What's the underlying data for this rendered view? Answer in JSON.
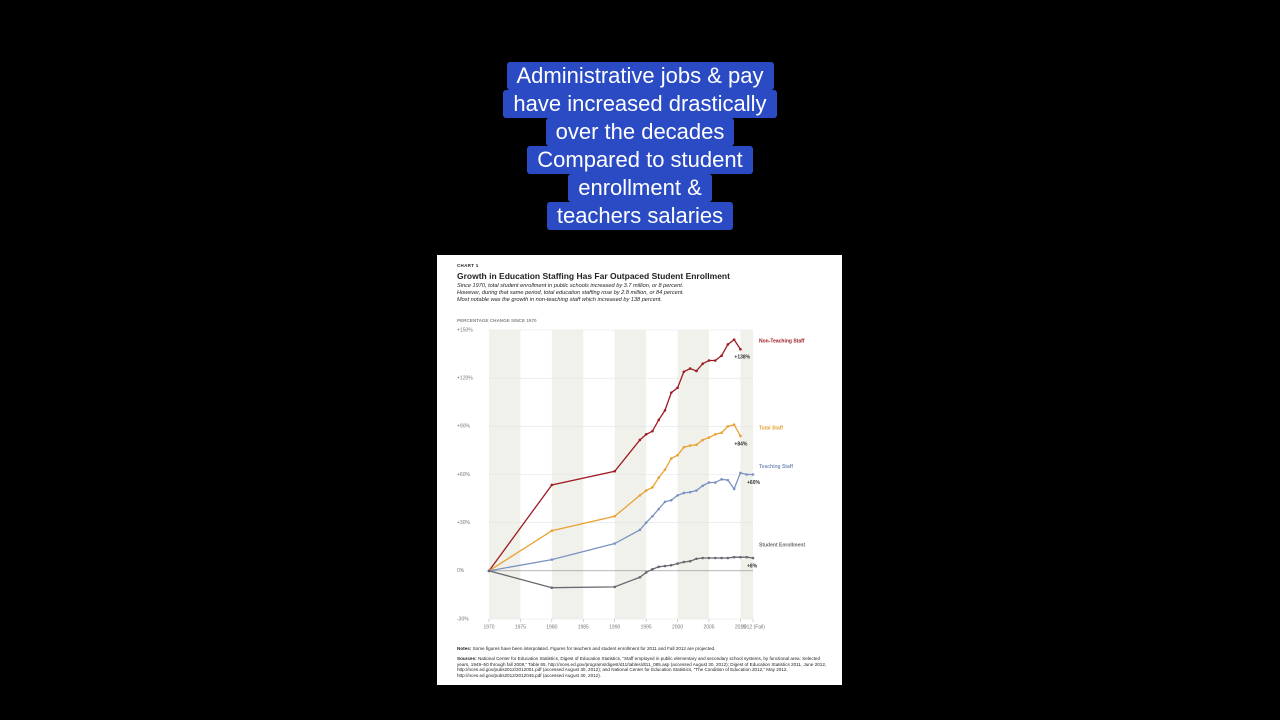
{
  "caption": {
    "lines": [
      "Administrative jobs & pay",
      "have increased drastically",
      "over the decades",
      "Compared to student",
      "enrollment &",
      "teachers salaries"
    ]
  },
  "chart_data": {
    "type": "line",
    "label": "CHART 1",
    "title": "Growth in Education Staffing Has Far Outpaced Student Enrollment",
    "subtitle": [
      "Since 1970, total student enrollment in public schools increased by 3.7 million, or 8 percent.",
      "However, during that same period, total education staffing rose by 2.8 million, or 84 percent.",
      "Most notable was the growth in non-teaching staff which increased by 138 percent."
    ],
    "ylabel": "PERCENTAGE CHANGE SINCE 1970",
    "x": [
      1970,
      1980,
      1990,
      1994,
      1995,
      1996,
      1997,
      1998,
      1999,
      2000,
      2001,
      2002,
      2003,
      2004,
      2005,
      2006,
      2007,
      2008,
      2009,
      2010,
      2011,
      2012
    ],
    "series": [
      {
        "name": "Non-Teaching Staff",
        "color": "#9e1b23",
        "values": [
          0,
          53.5,
          62,
          81.5,
          85,
          87,
          94,
          100,
          111,
          114,
          124,
          126,
          124.5,
          129,
          131,
          131,
          134,
          141,
          144,
          138,
          null,
          null
        ],
        "value_labels": [
          null,
          null,
          null,
          null,
          null,
          null,
          null,
          null,
          null,
          null,
          null,
          null,
          null,
          null,
          null,
          null,
          null,
          null,
          null,
          "+138%",
          null,
          null
        ]
      },
      {
        "name": "Total Staff",
        "color": "#e8a232",
        "values": [
          0,
          25,
          34,
          47,
          50,
          52,
          58,
          63,
          70,
          72,
          77,
          78,
          78.5,
          81.5,
          83,
          85,
          86,
          90,
          91,
          84,
          null,
          null
        ],
        "value_labels": [
          null,
          null,
          null,
          null,
          null,
          null,
          null,
          null,
          null,
          null,
          null,
          null,
          null,
          null,
          null,
          null,
          null,
          null,
          null,
          "+84%",
          null,
          null
        ]
      },
      {
        "name": "Teaching Staff",
        "color": "#7b92c0",
        "values": [
          0,
          7,
          17,
          25.5,
          30,
          34,
          38.5,
          43,
          44,
          47,
          48.5,
          49,
          50,
          53,
          55,
          55,
          57,
          56.5,
          51,
          61,
          60,
          60
        ],
        "value_labels": [
          null,
          null,
          null,
          null,
          null,
          null,
          null,
          null,
          null,
          null,
          null,
          null,
          null,
          null,
          null,
          null,
          null,
          null,
          null,
          null,
          null,
          "+60%"
        ]
      },
      {
        "name": "Student Enrollment",
        "color": "#666a70",
        "values": [
          0,
          -10.5,
          -10,
          -4,
          -1,
          1,
          2.5,
          3,
          3.5,
          4.5,
          5.5,
          6,
          7.5,
          8,
          8,
          8,
          8,
          8,
          8.5,
          8.5,
          8.5,
          8
        ],
        "value_labels": [
          null,
          null,
          null,
          null,
          null,
          null,
          null,
          null,
          null,
          null,
          null,
          null,
          null,
          null,
          null,
          null,
          null,
          null,
          null,
          null,
          null,
          "+8%"
        ]
      }
    ],
    "xlim": [
      1970,
      2012
    ],
    "ylim": [
      -30,
      150
    ],
    "xticks": [
      1970,
      1975,
      1980,
      1985,
      1990,
      1995,
      2000,
      2005,
      2010,
      {
        "value": 2012,
        "label": "2012 (Fall)"
      }
    ],
    "yticks": [
      {
        "value": 150,
        "label": "+150%"
      },
      {
        "value": 120,
        "label": "+120%"
      },
      {
        "value": 90,
        "label": "+90%"
      },
      {
        "value": 60,
        "label": "+60%"
      },
      {
        "value": 30,
        "label": "+30%"
      },
      {
        "value": 0,
        "label": "0%"
      },
      {
        "value": -30,
        "label": "-30%"
      }
    ],
    "grid": true,
    "notes": {
      "label": "Notes:",
      "text": "Some figures have been interpolated. Figures for teachers and student enrollment for 2011 and Fall 2012 are projected."
    },
    "sources": {
      "label": "Sources:",
      "text": "National Center for Education Statistics, Digest of Education Statistics, “Staff employed in public elementary and secondary school systems, by functional area: Selected years, 1949–50 through fall 2009,” Table 85, http://nces.ed.gov/programs/digest/d11/tables/dt11_085.asp (accessed August 30, 2012); Digest of Education Statistics 2011, June 2012, http://nces.ed.gov/pubs2012/2012001.pdf (accessed August 30, 2012); and National Center for Education Statistics, “The Condition of Education 2012,” May 2012, http://nces.ed.gov/pubs2012/2012045.pdf (accessed August 30, 2012)."
    }
  }
}
